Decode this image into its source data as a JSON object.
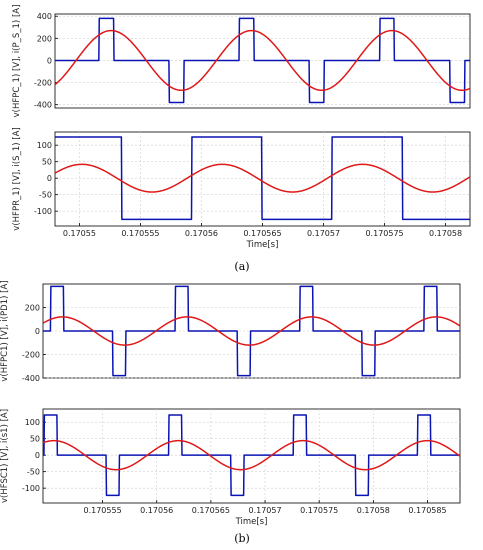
{
  "captions": {
    "a": "(a)",
    "b": "(b)"
  },
  "colors": {
    "square": "#0a14b4",
    "sine": "#e01818"
  },
  "chart_data": [
    {
      "type": "line",
      "id": "a1",
      "ylabel": "v(HFPC_1) [V], i(P_S_1) [A]",
      "xlim": [
        0.170548,
        0.170582
      ],
      "ylim": [
        -430,
        420
      ],
      "yticks": [
        -400,
        -200,
        0,
        200,
        400
      ],
      "ytick_labels": [
        "-400",
        "-200",
        "0",
        "200",
        "400"
      ],
      "grid": true,
      "series": [
        {
          "kind": "pulse",
          "color": "square",
          "amplitude": 380,
          "period": 1.15e-05,
          "center": 0.1705522,
          "width": 1.2e-06
        },
        {
          "kind": "sine",
          "color": "sine",
          "amplitude": 270,
          "period": 1.15e-05,
          "peak": 0.1705526
        }
      ]
    },
    {
      "type": "line",
      "id": "a2",
      "ylabel": "v(HFPR_1) [V], i(S_1) [A]",
      "xlim": [
        0.170548,
        0.170582
      ],
      "ylim": [
        -145,
        140
      ],
      "yticks": [
        -100,
        -50,
        0,
        50,
        100
      ],
      "ytick_labels": [
        "-100",
        "-50",
        "0",
        "50",
        "100"
      ],
      "xticks": [
        0.17055,
        0.170555,
        0.17056,
        0.170565,
        0.17057,
        0.170575,
        0.17058
      ],
      "xtick_labels": [
        "0.17055",
        "0.170555",
        "0.17056",
        "0.170565",
        "0.17057",
        "0.170575",
        "0.17058"
      ],
      "xlabel": "Time[s]",
      "grid": true,
      "series": [
        {
          "kind": "square",
          "color": "square",
          "amplitude": 125,
          "period": 1.15e-05,
          "rise": 0.1705477
        },
        {
          "kind": "sine",
          "color": "sine",
          "amplitude": 42,
          "period": 1.15e-05,
          "peak": 0.1705502
        }
      ]
    },
    {
      "type": "line",
      "id": "b1",
      "ylabel": "v(HFPC1) [V], i(PD1) [A]",
      "xlim": [
        0.1705495,
        0.170588
      ],
      "ylim": [
        -400,
        400
      ],
      "yticks": [
        -400,
        -200,
        0,
        200
      ],
      "ytick_labels": [
        "-400",
        "-200",
        "0",
        "200"
      ],
      "grid": true,
      "series": [
        {
          "kind": "pulse",
          "color": "square",
          "amplitude": 380,
          "period": 1.15e-05,
          "center": 0.1705508,
          "width": 1.2e-06
        },
        {
          "kind": "sine",
          "color": "sine",
          "amplitude": 120,
          "period": 1.15e-05,
          "peak": 0.1705513
        }
      ]
    },
    {
      "type": "line",
      "id": "b2",
      "ylabel": "v(HFSC1) [V], i(s1) [A]",
      "xlim": [
        0.1705495,
        0.170588
      ],
      "ylim": [
        -145,
        140
      ],
      "yticks": [
        -100,
        -50,
        0,
        50,
        100
      ],
      "ytick_labels": [
        "-100",
        "-50",
        "0",
        "50",
        "100"
      ],
      "xticks": [
        0.170555,
        0.17056,
        0.170565,
        0.17057,
        0.170575,
        0.17058,
        0.170585
      ],
      "xtick_labels": [
        "0.170555",
        "0.17056",
        "0.170565",
        "0.17057",
        "0.170575",
        "0.17058",
        "0.170585"
      ],
      "xlabel": "Time[s]",
      "grid": true,
      "series": [
        {
          "kind": "pulse",
          "color": "square",
          "amplitude": 122,
          "period": 1.15e-05,
          "center": 0.1705502,
          "width": 1.2e-06
        },
        {
          "kind": "sine",
          "color": "sine",
          "amplitude": 44,
          "period": 1.15e-05,
          "peak": 0.170562
        }
      ]
    }
  ]
}
